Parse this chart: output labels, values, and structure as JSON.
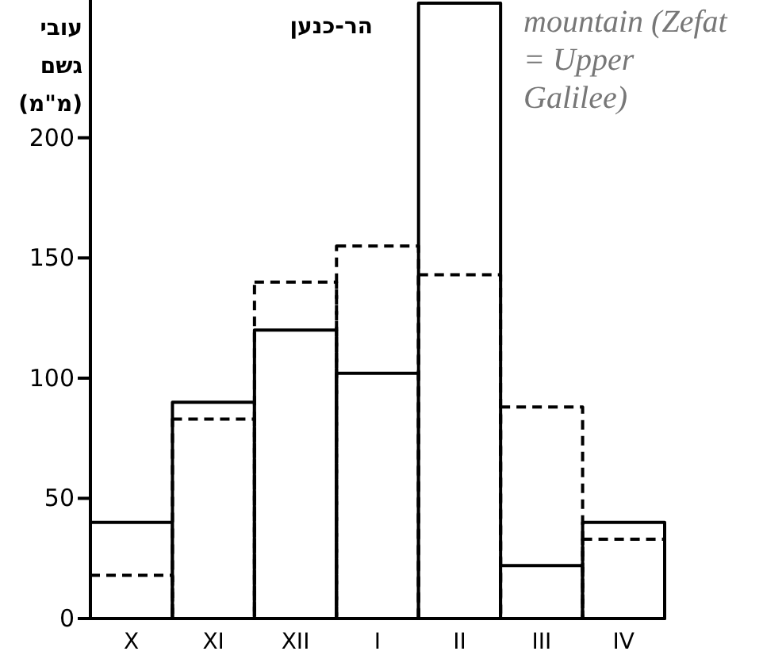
{
  "chart_data": {
    "type": "bar",
    "title": "הר-כנען",
    "ylabel": "עובי גשם (מ\"מ)",
    "annotations": [
      "mountain (Zefat = Upper Galilee)"
    ],
    "categories": [
      "X",
      "XI",
      "XII",
      "I",
      "II",
      "III",
      "IV"
    ],
    "series": [
      {
        "color": "#000000",
        "line_style": "solid",
        "values": [
          40,
          90,
          120,
          102,
          256,
          22,
          40
        ]
      },
      {
        "color": "#000000",
        "line_style": "dashed",
        "values": [
          18,
          83,
          140,
          155,
          143,
          88,
          33
        ]
      }
    ],
    "ylim": [
      0,
      256
    ],
    "yticks": [
      0,
      50,
      100,
      150,
      200
    ]
  }
}
